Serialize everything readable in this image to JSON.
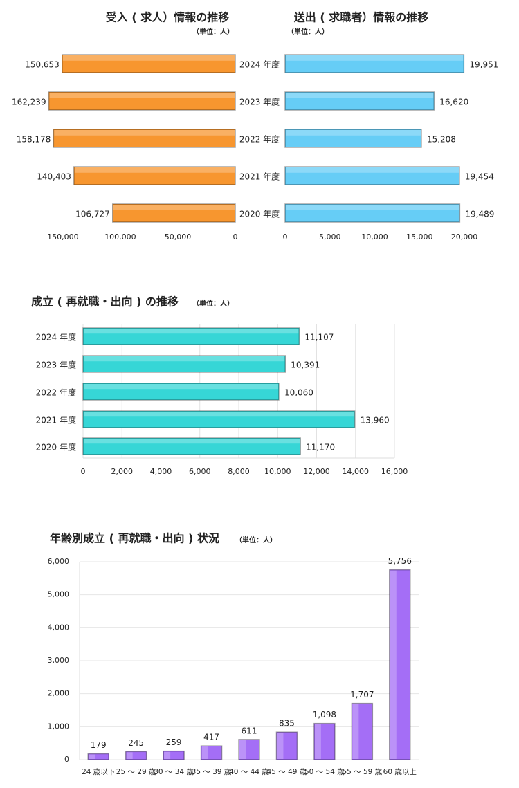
{
  "chart_data": [
    {
      "type": "bar",
      "orientation": "horizontal",
      "x_inverted": true,
      "title": "受入 ( 求人）情報の推移",
      "subtitle": "（単位：人）",
      "categories": [
        "2024 年度",
        "2023 年度",
        "2022 年度",
        "2021 年度",
        "2020 年度"
      ],
      "values": [
        150653,
        162239,
        158178,
        140403,
        106727
      ],
      "value_labels": [
        "150,653",
        "162,239",
        "158,178",
        "140,403",
        "106,727"
      ],
      "color": "#f7962f",
      "xlim": [
        0,
        165000
      ],
      "xticks": [
        {
          "value": 150000,
          "label": "150,000"
        },
        {
          "value": 100000,
          "label": "100,000"
        },
        {
          "value": 50000,
          "label": "50,000"
        },
        0
      ],
      "grid": false
    },
    {
      "type": "bar",
      "orientation": "horizontal",
      "title": "送出 ( 求職者）情報の推移",
      "subtitle": "（単位：人）",
      "values": [
        19951,
        16620,
        15208,
        19454,
        19489
      ],
      "value_labels": [
        "19,951",
        "16,620",
        "15,208",
        "19,454",
        "19,489"
      ],
      "color": "#66cdf6",
      "xlim": [
        0,
        20000
      ],
      "xticks": [
        0,
        {
          "value": 5000,
          "label": "5,000"
        },
        {
          "value": 10000,
          "label": "10,000"
        },
        {
          "value": 15000,
          "label": "15,000"
        },
        {
          "value": 20000,
          "label": "20,000"
        }
      ],
      "grid": false
    },
    {
      "type": "bar",
      "orientation": "horizontal",
      "title": "成立 ( 再就職・出向 ) の推移",
      "subtitle": "（単位：人）",
      "categories": [
        "2024 年度",
        "2023 年度",
        "2022 年度",
        "2021 年度",
        "2020 年度"
      ],
      "values": [
        11107,
        10391,
        10060,
        13960,
        11170
      ],
      "value_labels": [
        "11,107",
        "10,391",
        "10,060",
        "13,960",
        "11,170"
      ],
      "color": "#36d6d6",
      "xlim": [
        0,
        16000
      ],
      "xticks": [
        0,
        {
          "value": 2000,
          "label": "2,000"
        },
        {
          "value": 4000,
          "label": "4,000"
        },
        {
          "value": 6000,
          "label": "6,000"
        },
        {
          "value": 8000,
          "label": "8,000"
        },
        {
          "value": 10000,
          "label": "10,000"
        },
        {
          "value": 12000,
          "label": "12,000"
        },
        {
          "value": 14000,
          "label": "14,000"
        },
        {
          "value": 16000,
          "label": "16,000"
        }
      ],
      "grid": true
    },
    {
      "type": "bar",
      "orientation": "vertical",
      "title": "年齢別成立 ( 再就職・出向 ) 状況",
      "subtitle": "（単位：人）",
      "categories": [
        "24 歳以下",
        "25 ～ 29 歳",
        "30 ～ 34 歳",
        "35 ～ 39 歳",
        "40 ～ 44 歳",
        "45 ～ 49 歳",
        "50 ～ 54 歳",
        "55 ～ 59 歳",
        "60 歳以上"
      ],
      "values": [
        179,
        245,
        259,
        417,
        611,
        835,
        1098,
        1707,
        5756
      ],
      "value_labels": [
        "179",
        "245",
        "259",
        "417",
        "611",
        "835",
        "1,098",
        "1,707",
        "5,756"
      ],
      "color": "#a46ef6",
      "ylim": [
        0,
        6000
      ],
      "yticks": [
        0,
        {
          "value": 1000,
          "label": "1,000"
        },
        {
          "value": 2000,
          "label": "2,000"
        },
        {
          "value": 3000,
          "label": "3,000"
        },
        {
          "value": 4000,
          "label": "4,000"
        },
        {
          "value": 5000,
          "label": "5,000"
        },
        {
          "value": 6000,
          "label": "6,000"
        }
      ],
      "grid": true
    }
  ]
}
